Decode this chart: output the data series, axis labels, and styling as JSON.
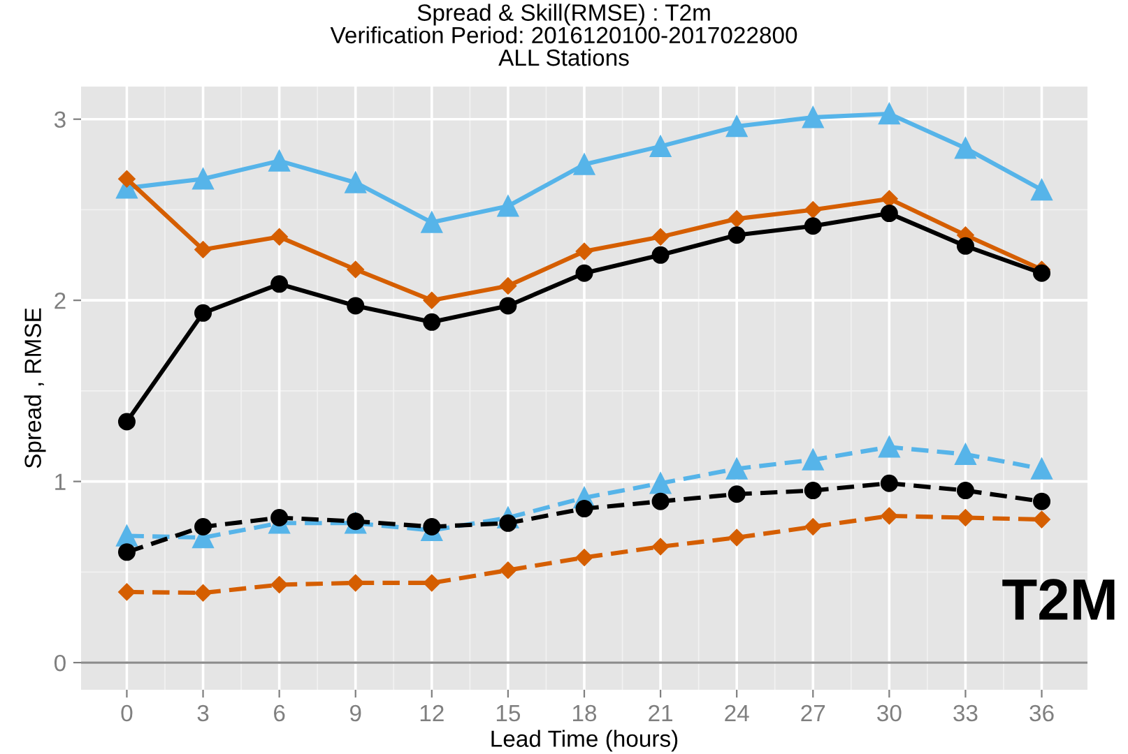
{
  "chart_data": {
    "type": "line",
    "title": "Spread & Skill(RMSE) : T2m\nVerification Period: 2016120100-2017022800\nALL Stations",
    "xlabel": "Lead Time (hours)",
    "ylabel": "Spread , RMSE",
    "x": [
      0,
      3,
      6,
      9,
      12,
      15,
      18,
      21,
      24,
      27,
      30,
      33,
      36
    ],
    "series": [
      {
        "color": "#56b4e9",
        "marker": "triangle",
        "line_style": "solid",
        "values": [
          2.62,
          2.67,
          2.77,
          2.65,
          2.43,
          2.52,
          2.75,
          2.85,
          2.96,
          3.01,
          3.03,
          2.84,
          2.61
        ]
      },
      {
        "color": "#d55e00",
        "marker": "diamond",
        "line_style": "solid",
        "values": [
          2.67,
          2.28,
          2.35,
          2.17,
          2.0,
          2.08,
          2.27,
          2.35,
          2.45,
          2.5,
          2.56,
          2.36,
          2.17
        ]
      },
      {
        "color": "#000000",
        "marker": "circle",
        "line_style": "solid",
        "values": [
          1.33,
          1.93,
          2.09,
          1.97,
          1.88,
          1.97,
          2.15,
          2.25,
          2.36,
          2.41,
          2.48,
          2.3,
          2.15
        ]
      },
      {
        "color": "#56b4e9",
        "marker": "triangle",
        "line_style": "dashed",
        "values": [
          0.7,
          0.69,
          0.77,
          0.77,
          0.73,
          0.8,
          0.91,
          0.99,
          1.07,
          1.12,
          1.19,
          1.15,
          1.07
        ]
      },
      {
        "color": "#000000",
        "marker": "circle",
        "line_style": "dashed",
        "values": [
          0.61,
          0.75,
          0.8,
          0.78,
          0.75,
          0.77,
          0.85,
          0.89,
          0.93,
          0.95,
          0.99,
          0.95,
          0.89
        ]
      },
      {
        "color": "#d55e00",
        "marker": "diamond",
        "line_style": "dashed",
        "values": [
          0.39,
          0.385,
          0.43,
          0.44,
          0.44,
          0.51,
          0.58,
          0.64,
          0.69,
          0.75,
          0.81,
          0.8,
          0.79
        ]
      }
    ],
    "xlim": [
      -1.8,
      37.8
    ],
    "xticks": [
      0,
      3,
      6,
      9,
      12,
      15,
      18,
      21,
      24,
      27,
      30,
      33,
      36
    ],
    "ylim": [
      -0.15,
      3.18
    ],
    "yticks": [
      0,
      1,
      2,
      3
    ],
    "ref_lines": [
      {
        "axis": "y",
        "value": 0,
        "color": "#8c8c8c"
      }
    ],
    "annotations": [
      "T2M"
    ],
    "grid": true
  }
}
